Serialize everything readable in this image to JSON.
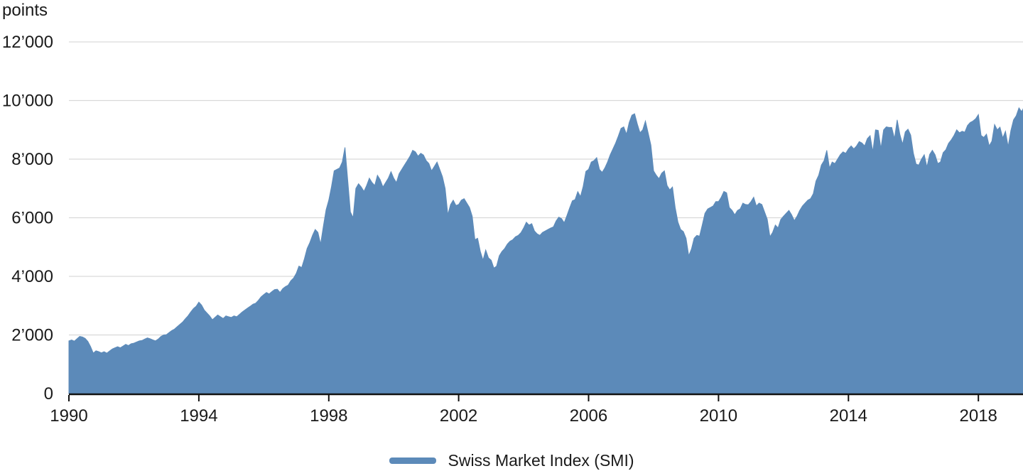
{
  "colors": {
    "area": "#5c8ab9",
    "grid": "#d9d9d9",
    "axis": "#111111",
    "text": "#1a1a1a",
    "background": "#ffffff"
  },
  "chart_data": {
    "type": "area",
    "title": "",
    "ylabel": "points",
    "xlabel": "",
    "grid": true,
    "legend_position": "bottom",
    "xlim": [
      1990,
      2019.5
    ],
    "ylim": [
      0,
      12000
    ],
    "x_ticks": [
      1990,
      1994,
      1998,
      2002,
      2006,
      2010,
      2014,
      2018
    ],
    "y_tick_values": [
      0,
      2000,
      4000,
      6000,
      8000,
      10000,
      12000
    ],
    "y_ticks": [
      "0",
      "2’000",
      "4’000",
      "6’000",
      "8’000",
      "10’000",
      "12’000"
    ],
    "x_start_year": 1990,
    "interval": "monthly",
    "series": [
      {
        "name": "Swiss Market Index (SMI)",
        "color": "#5c8ab9",
        "values": [
          1800,
          1830,
          1790,
          1870,
          1950,
          1930,
          1880,
          1780,
          1600,
          1380,
          1460,
          1430,
          1390,
          1430,
          1380,
          1450,
          1520,
          1560,
          1600,
          1560,
          1620,
          1680,
          1640,
          1700,
          1720,
          1760,
          1800,
          1810,
          1860,
          1900,
          1870,
          1830,
          1800,
          1860,
          1950,
          2000,
          2010,
          2080,
          2150,
          2200,
          2280,
          2360,
          2440,
          2550,
          2650,
          2780,
          2900,
          2980,
          3120,
          3020,
          2850,
          2750,
          2650,
          2520,
          2600,
          2680,
          2620,
          2560,
          2650,
          2620,
          2600,
          2650,
          2620,
          2700,
          2780,
          2850,
          2920,
          2980,
          3050,
          3080,
          3180,
          3300,
          3380,
          3450,
          3400,
          3480,
          3550,
          3560,
          3450,
          3580,
          3650,
          3700,
          3850,
          3940,
          4100,
          4350,
          4300,
          4600,
          4950,
          5150,
          5400,
          5600,
          5500,
          5100,
          5700,
          6270,
          6600,
          7060,
          7600,
          7650,
          7700,
          7900,
          8400,
          7300,
          6200,
          6000,
          7000,
          7160,
          7050,
          6900,
          7100,
          7350,
          7200,
          7100,
          7450,
          7300,
          7050,
          7200,
          7350,
          7570,
          7350,
          7200,
          7500,
          7650,
          7800,
          7950,
          8100,
          8300,
          8250,
          8100,
          8200,
          8140,
          7950,
          7850,
          7600,
          7750,
          7900,
          7650,
          7400,
          7000,
          6100,
          6450,
          6600,
          6420,
          6450,
          6600,
          6650,
          6500,
          6350,
          6050,
          5250,
          5300,
          4850,
          4550,
          4900,
          4630,
          4550,
          4280,
          4350,
          4700,
          4850,
          4950,
          5100,
          5200,
          5250,
          5350,
          5400,
          5490,
          5650,
          5850,
          5750,
          5800,
          5550,
          5450,
          5400,
          5500,
          5550,
          5600,
          5650,
          5690,
          5890,
          6020,
          5970,
          5830,
          6070,
          6340,
          6580,
          6620,
          6890,
          6720,
          7070,
          7580,
          7650,
          7900,
          7950,
          8050,
          7650,
          7550,
          7700,
          7900,
          8150,
          8350,
          8550,
          8790,
          9050,
          9100,
          8850,
          9250,
          9500,
          9550,
          9200,
          8900,
          9000,
          9300,
          8900,
          8480,
          7600,
          7450,
          7330,
          7520,
          7600,
          7100,
          6950,
          7050,
          6350,
          5850,
          5600,
          5530,
          5300,
          4700,
          4930,
          5300,
          5400,
          5370,
          5750,
          6150,
          6300,
          6350,
          6400,
          6550,
          6550,
          6700,
          6900,
          6850,
          6350,
          6250,
          6100,
          6250,
          6300,
          6500,
          6450,
          6440,
          6550,
          6700,
          6400,
          6500,
          6450,
          6200,
          5950,
          5350,
          5500,
          5750,
          5650,
          5940,
          6050,
          6150,
          6250,
          6100,
          5900,
          6050,
          6250,
          6400,
          6500,
          6600,
          6650,
          6820,
          7250,
          7450,
          7800,
          7950,
          8300,
          7700,
          7900,
          7850,
          8000,
          8150,
          8250,
          8200,
          8350,
          8450,
          8350,
          8450,
          8600,
          8550,
          8450,
          8700,
          8800,
          8250,
          9000,
          8980,
          8360,
          9000,
          9100,
          9080,
          9080,
          8700,
          9340,
          8840,
          8510,
          8930,
          9020,
          8820,
          8200,
          7830,
          7800,
          8000,
          8150,
          7730,
          8160,
          8300,
          8150,
          7850,
          7900,
          8220,
          8320,
          8540,
          8660,
          8810,
          9000,
          8900,
          8950,
          8920,
          9150,
          9250,
          9300,
          9380,
          9520,
          8810,
          8740,
          8850,
          8450,
          8610,
          9180,
          9000,
          9090,
          8720,
          8950,
          8430,
          8970,
          9340,
          9480,
          9750,
          9620,
          9800
        ]
      }
    ]
  },
  "legend": {
    "items": [
      {
        "label": "Swiss Market Index (SMI)",
        "color": "#5c8ab9"
      }
    ]
  }
}
